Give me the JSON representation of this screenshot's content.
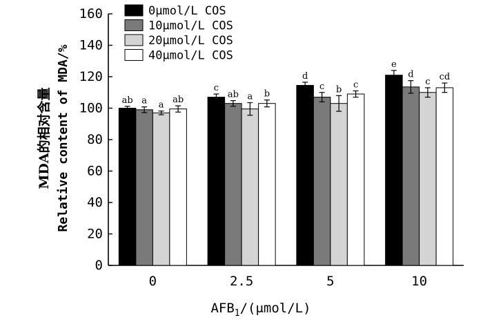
{
  "chart_data": {
    "type": "bar",
    "title": "",
    "xlabel": "AFB",
    "xlabel_sub": "1",
    "xlabel_suffix": "/(μmol/L)",
    "ylabel_line1": "MDA的相对含量",
    "ylabel_line2": "Relative content of MDA/%",
    "ylim": [
      0,
      160
    ],
    "yticks": [
      0,
      20,
      40,
      60,
      80,
      100,
      120,
      140,
      160
    ],
    "categories": [
      "0",
      "2.5",
      "5",
      "10"
    ],
    "legend_position": "top-left",
    "series": [
      {
        "name": "0μmol/L COS",
        "color": "#000000",
        "values": [
          100,
          107,
          114.5,
          121
        ],
        "errors": [
          1.2,
          2,
          2,
          3
        ],
        "labels": [
          "ab",
          "c",
          "d",
          "e"
        ]
      },
      {
        "name": "10μmol/L COS",
        "color": "#7a7a7a",
        "values": [
          99,
          103,
          107,
          113.5
        ],
        "errors": [
          1.8,
          1.8,
          3,
          4
        ],
        "labels": [
          "a",
          "ab",
          "c",
          "d"
        ]
      },
      {
        "name": "20μmol/L COS",
        "color": "#d4d4d4",
        "values": [
          97,
          99.5,
          103,
          110
        ],
        "errors": [
          1.2,
          4,
          5,
          3
        ],
        "labels": [
          "a",
          "a",
          "b",
          "c"
        ]
      },
      {
        "name": "40μmol/L COS",
        "color": "#ffffff",
        "values": [
          99.5,
          103,
          109,
          113
        ],
        "errors": [
          2,
          2.2,
          2,
          3
        ],
        "labels": [
          "ab",
          "b",
          "c",
          "cd"
        ]
      }
    ]
  }
}
